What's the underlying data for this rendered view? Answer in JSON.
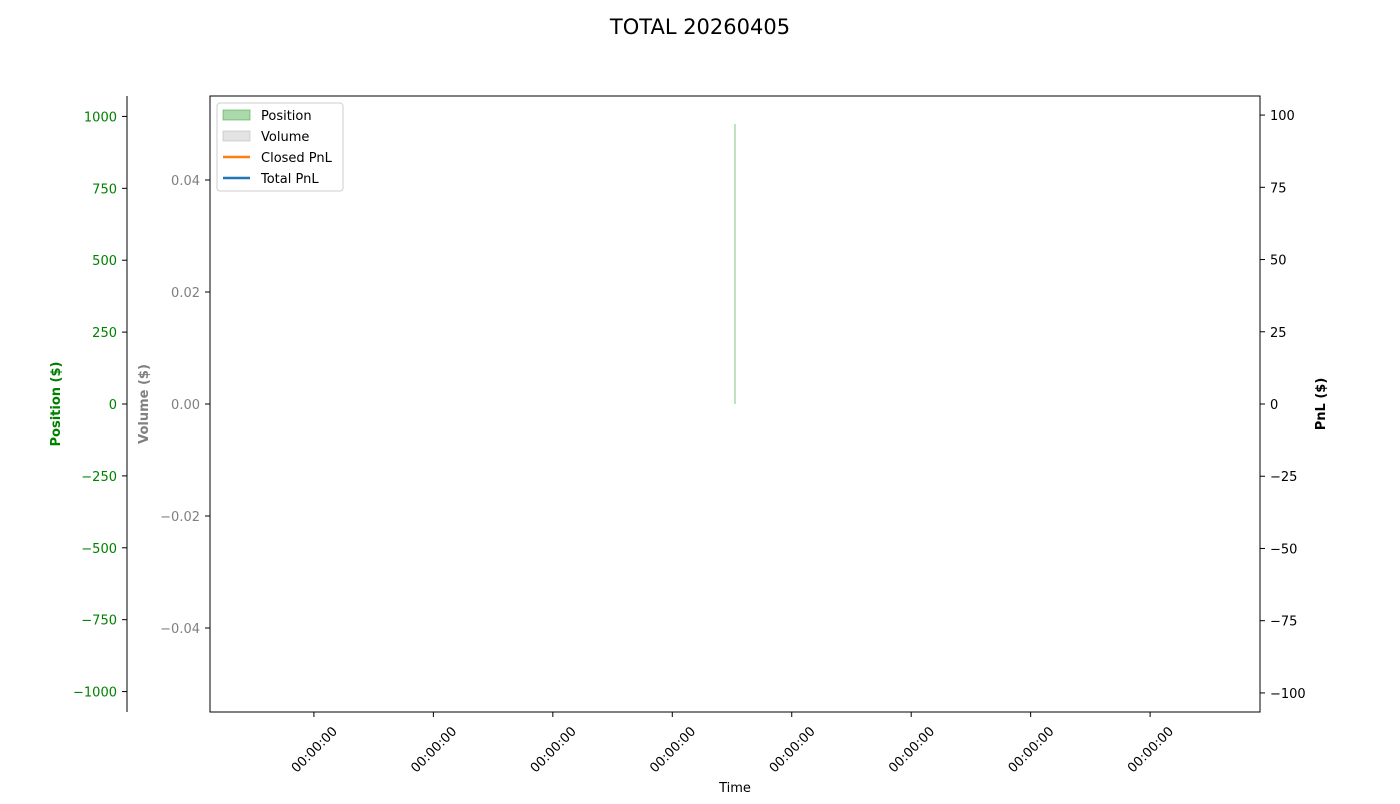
{
  "chart_data": {
    "type": "line",
    "title": "TOTAL 20260405",
    "xlabel": "Time",
    "xlim": [
      0.13,
      8.92
    ],
    "xticks": [
      {
        "value": 1,
        "label": "00:00:00"
      },
      {
        "value": 2,
        "label": "00:00:00"
      },
      {
        "value": 3,
        "label": "00:00:00"
      },
      {
        "value": 4,
        "label": "00:00:00"
      },
      {
        "value": 5,
        "label": "00:00:00"
      },
      {
        "value": 6,
        "label": "00:00:00"
      },
      {
        "value": 7,
        "label": "00:00:00"
      },
      {
        "value": 8,
        "label": "00:00:00"
      }
    ],
    "ylabel": "Position ($)",
    "ycolor": "green",
    "ylim": [
      -1071,
      1071
    ],
    "yticks": [
      {
        "value": -1000,
        "label": "−1000"
      },
      {
        "value": -750,
        "label": "−750"
      },
      {
        "value": -500,
        "label": "−500"
      },
      {
        "value": -250,
        "label": "−250"
      },
      0,
      250,
      500,
      750,
      1000
    ],
    "y3label": "Volume ($)",
    "y3color": "gray",
    "y3lim": [
      -0.055,
      0.055
    ],
    "y3ticks": [
      {
        "value": -0.04,
        "label": "−0.04"
      },
      {
        "value": -0.02,
        "label": "−0.02"
      },
      {
        "value": 0,
        "label": "0.00"
      },
      {
        "value": 0.02,
        "label": "0.02"
      },
      {
        "value": 0.04,
        "label": "0.04"
      }
    ],
    "y2label": "PnL ($)",
    "y2color": "black",
    "y2lim": [
      -106.6,
      106.6
    ],
    "y2ticks": [
      {
        "value": -100,
        "label": "−100"
      },
      {
        "value": -75,
        "label": "−75"
      },
      {
        "value": -50,
        "label": "−50"
      },
      {
        "value": -25,
        "label": "−25"
      },
      0,
      25,
      50,
      75,
      100
    ],
    "legend": "upper left",
    "series": [
      {
        "name": "Position",
        "kind": "area",
        "axis": "y",
        "color": "#2ca02c",
        "x": [
          4.525
        ],
        "values": [
          974
        ]
      },
      {
        "name": "Volume",
        "kind": "area",
        "axis": "y3",
        "color": "#b0b0b0",
        "x": [
          4.525
        ],
        "values": [
          0
        ]
      },
      {
        "name": "Closed PnL",
        "kind": "line",
        "axis": "y2",
        "color": "#ff7f0e",
        "x": [
          4.525
        ],
        "values": [
          0
        ]
      },
      {
        "name": "Total PnL",
        "kind": "line",
        "axis": "y2",
        "color": "#1f77b4",
        "x": [
          4.525
        ],
        "values": [
          0
        ]
      }
    ]
  }
}
